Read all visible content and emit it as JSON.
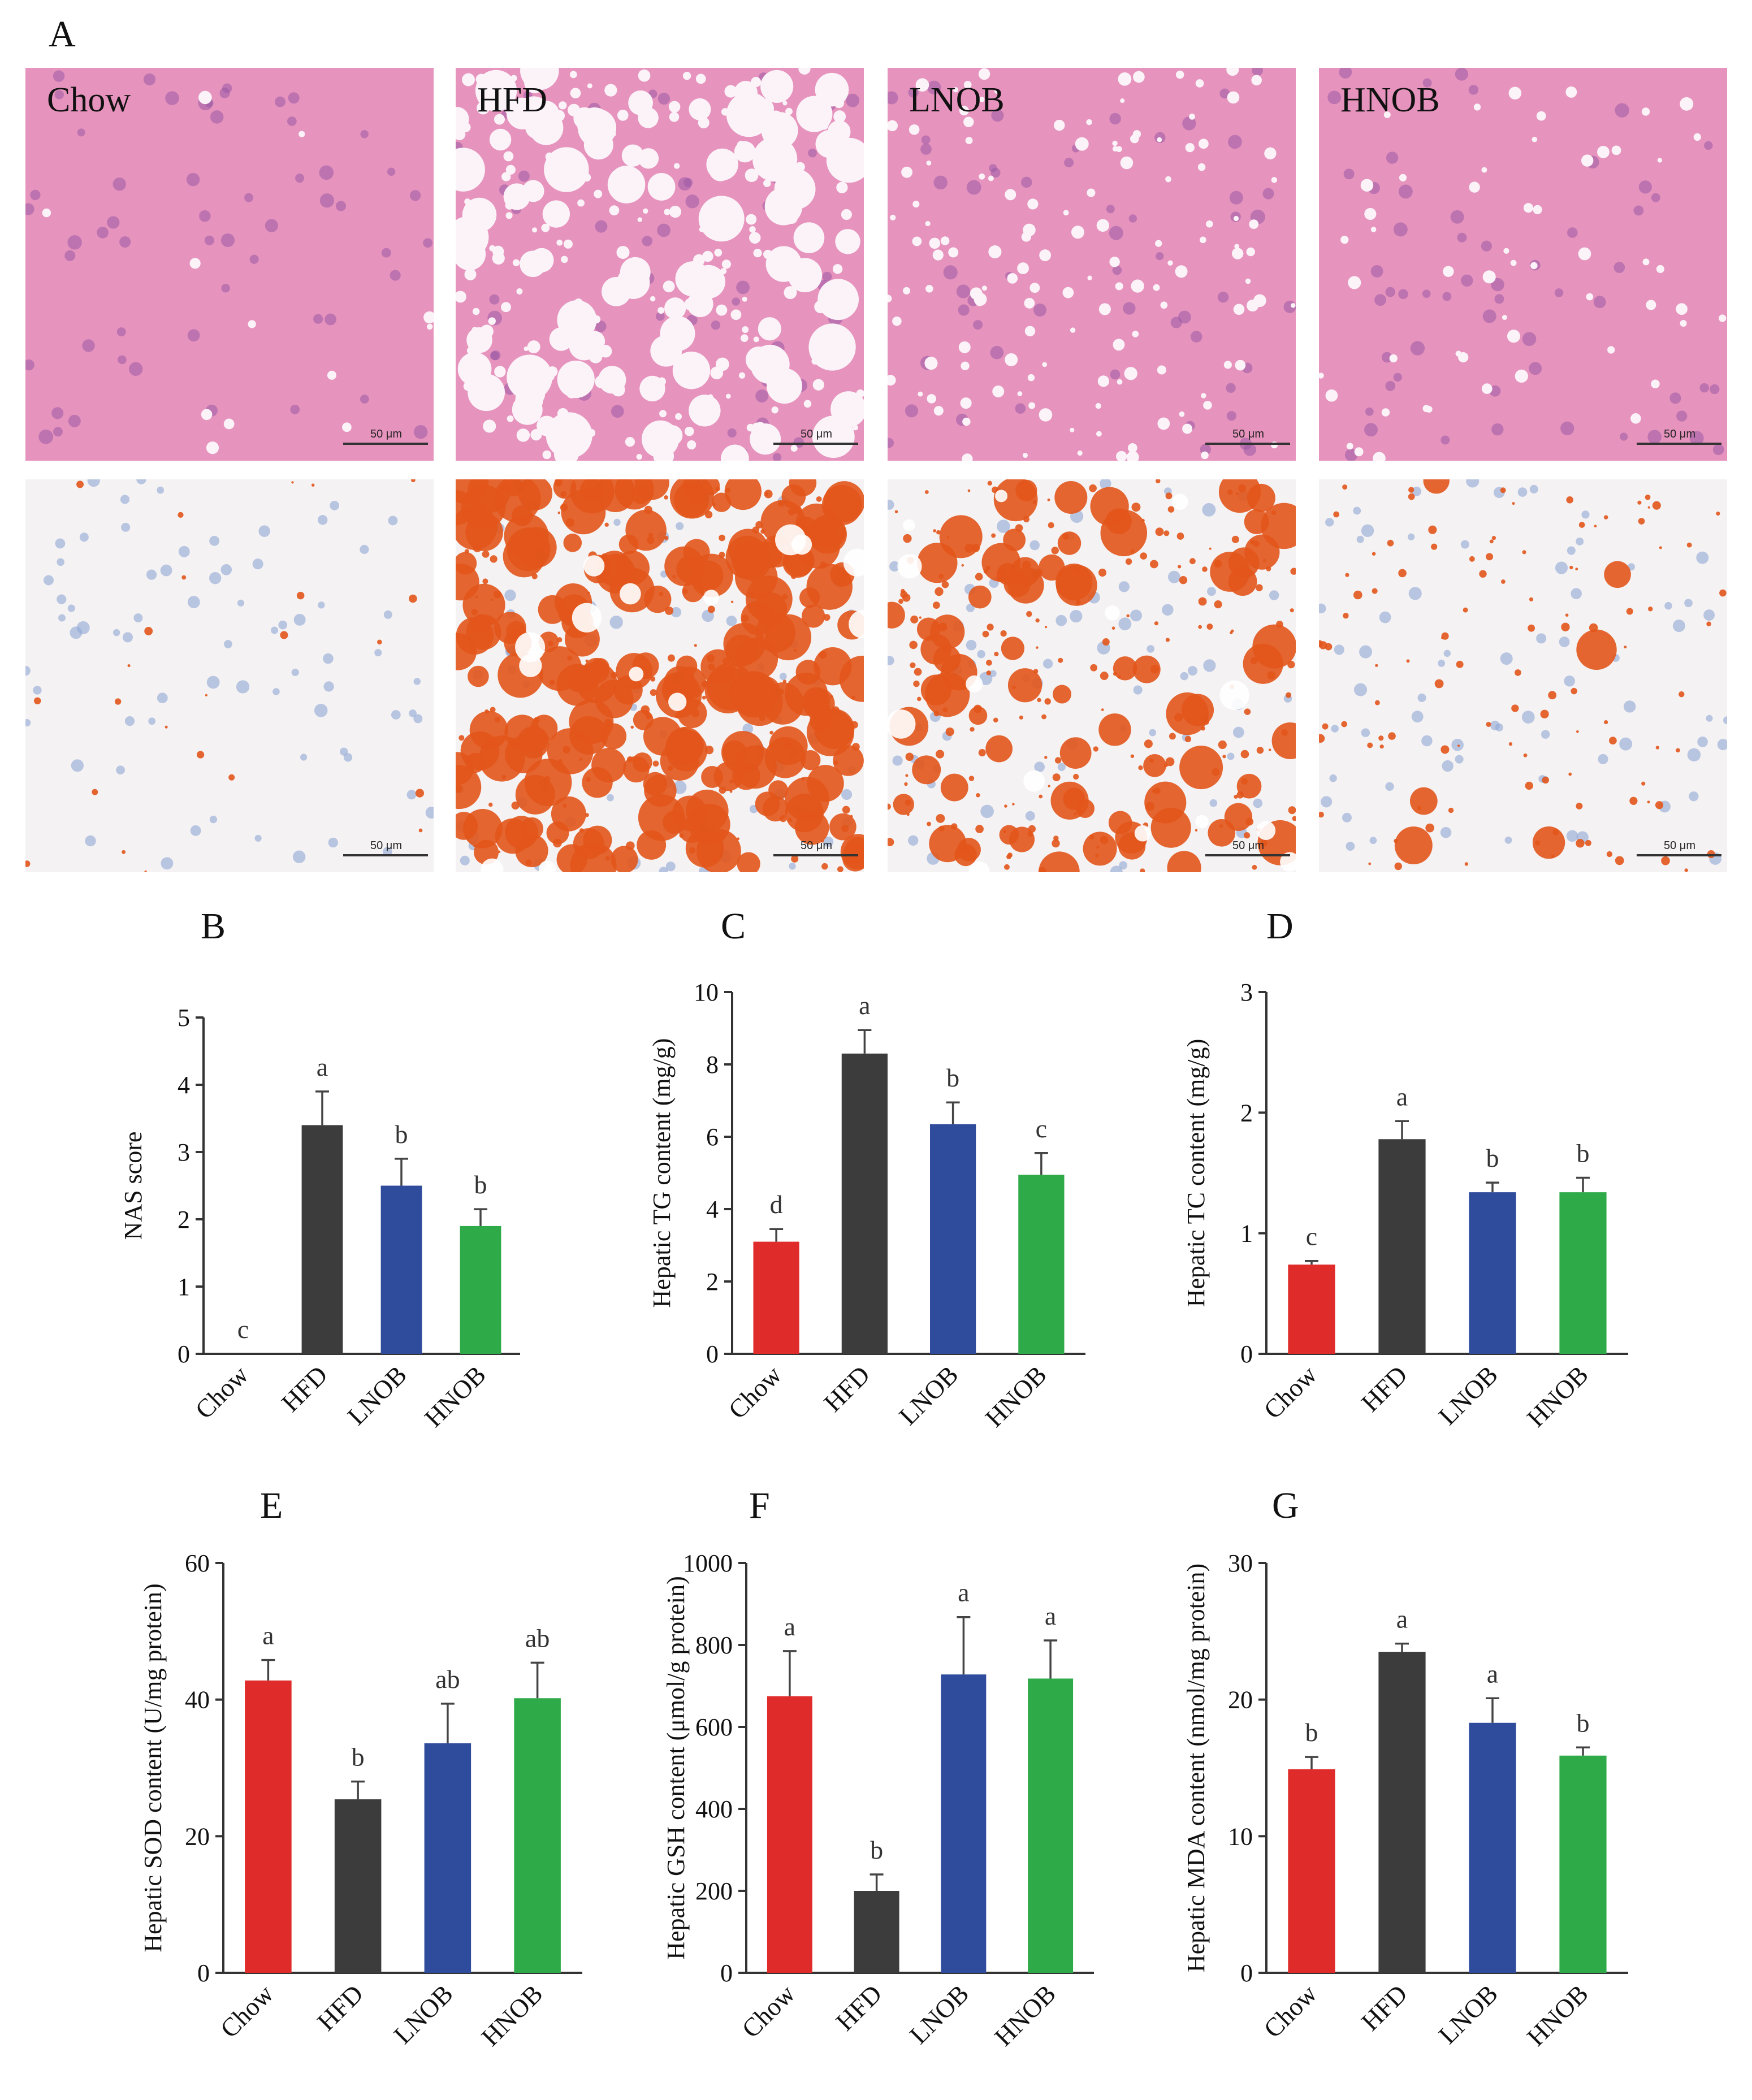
{
  "panel_a": {
    "letter": "A",
    "groups": [
      "Chow",
      "HFD",
      "LNOB",
      "HNOB"
    ],
    "scale_label": "50 μm"
  },
  "colors": {
    "Chow": "#e02b2b",
    "HFD": "#3c3c3c",
    "LNOB": "#2f4b9c",
    "HNOB": "#2faa48",
    "he_stain": "#e693bd",
    "oro_stain": "#e2551b",
    "nucleus_blue": "#8fa6d6"
  },
  "chart_data": [
    {
      "id": "B",
      "letter": "B",
      "type": "bar",
      "categories": [
        "Chow",
        "HFD",
        "LNOB",
        "HNOB"
      ],
      "values": [
        0,
        3.4,
        2.5,
        1.9
      ],
      "errors": [
        0,
        0.5,
        0.4,
        0.25
      ],
      "sig": [
        "c",
        "a",
        "b",
        "b"
      ],
      "ylabel": "NAS score",
      "ylim": [
        0,
        5
      ],
      "yticks": [
        "0",
        "1",
        "2",
        "3",
        "4",
        "5"
      ]
    },
    {
      "id": "C",
      "letter": "C",
      "type": "bar",
      "categories": [
        "Chow",
        "HFD",
        "LNOB",
        "HNOB"
      ],
      "values": [
        3.1,
        8.3,
        6.35,
        4.95
      ],
      "errors": [
        0.35,
        0.65,
        0.6,
        0.6
      ],
      "sig": [
        "d",
        "a",
        "b",
        "c"
      ],
      "ylabel": "Hepatic TG content (mg/g)",
      "ylim": [
        0,
        10
      ],
      "yticks": [
        "0",
        "2",
        "4",
        "6",
        "8",
        "10"
      ]
    },
    {
      "id": "D",
      "letter": "D",
      "type": "bar",
      "categories": [
        "Chow",
        "HFD",
        "LNOB",
        "HNOB"
      ],
      "values": [
        0.74,
        1.78,
        1.34,
        1.34
      ],
      "errors": [
        0.03,
        0.15,
        0.08,
        0.12
      ],
      "sig": [
        "c",
        "a",
        "b",
        "b"
      ],
      "ylabel": "Hepatic TC content (mg/g)",
      "ylim": [
        0,
        3
      ],
      "yticks": [
        "0",
        "1",
        "2",
        "3"
      ]
    },
    {
      "id": "E",
      "letter": "E",
      "type": "bar",
      "categories": [
        "Chow",
        "HFD",
        "LNOB",
        "HNOB"
      ],
      "values": [
        42.8,
        25.4,
        33.6,
        40.2
      ],
      "errors": [
        3.0,
        2.6,
        5.8,
        5.2
      ],
      "sig": [
        "a",
        "b",
        "ab",
        "ab"
      ],
      "ylabel": "Hepatic SOD content (U/mg protein)",
      "ylim": [
        0,
        60
      ],
      "yticks": [
        "0",
        "20",
        "40",
        "60"
      ]
    },
    {
      "id": "F",
      "letter": "F",
      "type": "bar",
      "categories": [
        "Chow",
        "HFD",
        "LNOB",
        "HNOB"
      ],
      "values": [
        675,
        200,
        728,
        718
      ],
      "errors": [
        110,
        40,
        140,
        93
      ],
      "sig": [
        "a",
        "b",
        "a",
        "a"
      ],
      "ylabel": "Hepatic GSH content (μmol/g protein)",
      "ylim": [
        0,
        1000
      ],
      "yticks": [
        "0",
        "200",
        "400",
        "600",
        "800",
        "1000"
      ]
    },
    {
      "id": "G",
      "letter": "G",
      "type": "bar",
      "categories": [
        "Chow",
        "HFD",
        "LNOB",
        "HNOB"
      ],
      "values": [
        14.9,
        23.5,
        18.3,
        15.9
      ],
      "errors": [
        0.9,
        0.6,
        1.8,
        0.6
      ],
      "sig": [
        "b",
        "a",
        "a",
        "b"
      ],
      "ylabel": "Hepatic MDA content (nmol/mg protein)",
      "ylim": [
        0,
        30
      ],
      "yticks": [
        "0",
        "10",
        "20",
        "30"
      ]
    }
  ]
}
